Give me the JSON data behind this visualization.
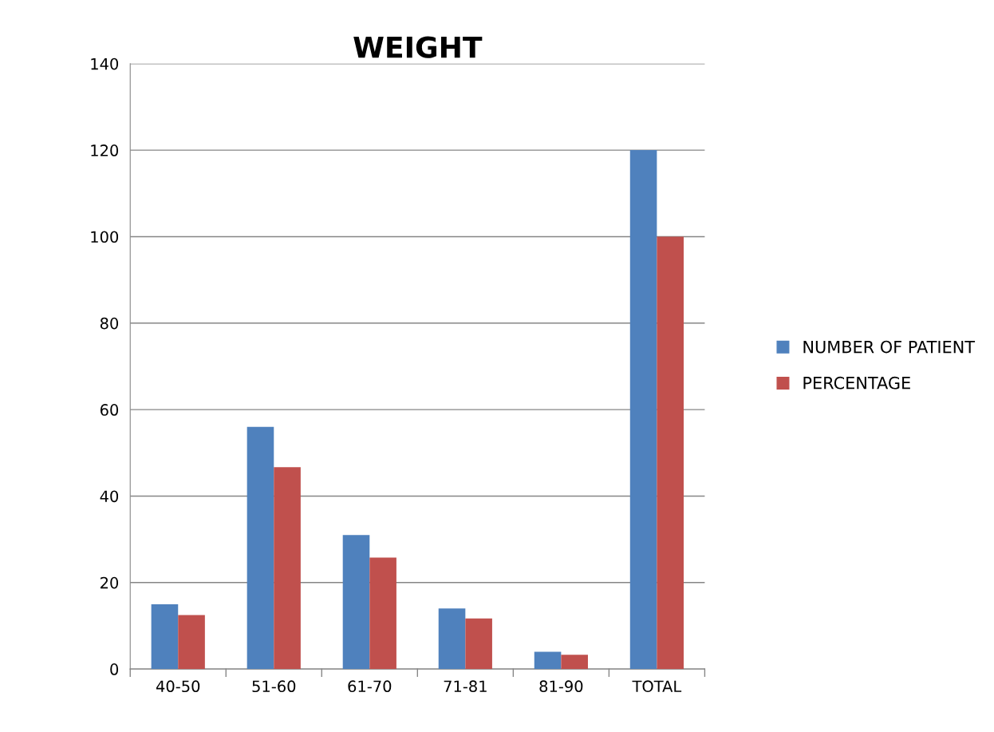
{
  "chart_data": {
    "type": "bar",
    "title": "WEIGHT",
    "categories": [
      "40-50",
      "51-60",
      "61-70",
      "71-81",
      "81-90",
      "TOTAL"
    ],
    "series": [
      {
        "name": "NUMBER OF PATIENT",
        "color": "#4f81bd",
        "values": [
          15,
          56,
          31,
          14,
          4,
          120
        ]
      },
      {
        "name": "PERCENTAGE",
        "color": "#c0504d",
        "values": [
          12.5,
          46.7,
          25.8,
          11.7,
          3.3,
          100
        ]
      }
    ],
    "ylim": [
      0,
      140
    ],
    "yticks": [
      0,
      20,
      40,
      60,
      80,
      100,
      120,
      140
    ],
    "grid": "y",
    "legend": "right"
  }
}
